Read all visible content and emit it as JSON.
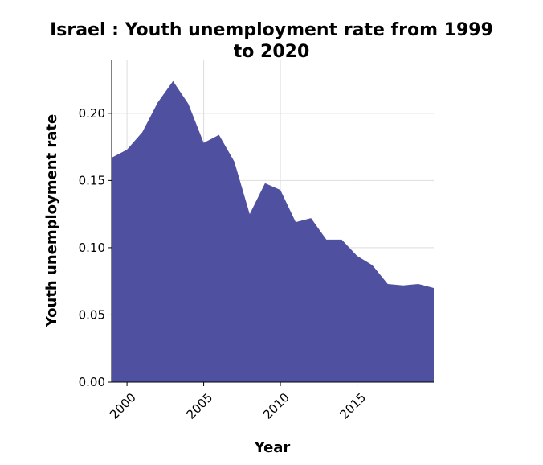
{
  "chart_data": {
    "type": "area",
    "title_line1": "Israel : Youth unemployment rate from 1999",
    "title_line2": "to 2020",
    "xlabel": "Year",
    "ylabel": "Youth unemployment rate",
    "xlim": [
      1999,
      2020
    ],
    "ylim": [
      0,
      0.24
    ],
    "xticks": [
      2000,
      2005,
      2010,
      2015
    ],
    "xtick_labels": [
      "2000",
      "2005",
      "2010",
      "2015"
    ],
    "yticks": [
      0,
      0.05,
      0.1,
      0.15,
      0.2
    ],
    "ytick_labels": [
      "0.00",
      "0.05",
      "0.10",
      "0.15",
      "0.20"
    ],
    "grid": true,
    "fill_color": "#5050a0",
    "x": [
      1999,
      2000,
      2001,
      2002,
      2003,
      2004,
      2005,
      2006,
      2007,
      2008,
      2009,
      2010,
      2011,
      2012,
      2013,
      2014,
      2015,
      2016,
      2017,
      2018,
      2019,
      2020
    ],
    "y": [
      0.167,
      0.173,
      0.186,
      0.208,
      0.224,
      0.207,
      0.178,
      0.184,
      0.164,
      0.125,
      0.148,
      0.143,
      0.119,
      0.122,
      0.106,
      0.106,
      0.094,
      0.087,
      0.073,
      0.072,
      0.073,
      0.07
    ]
  }
}
